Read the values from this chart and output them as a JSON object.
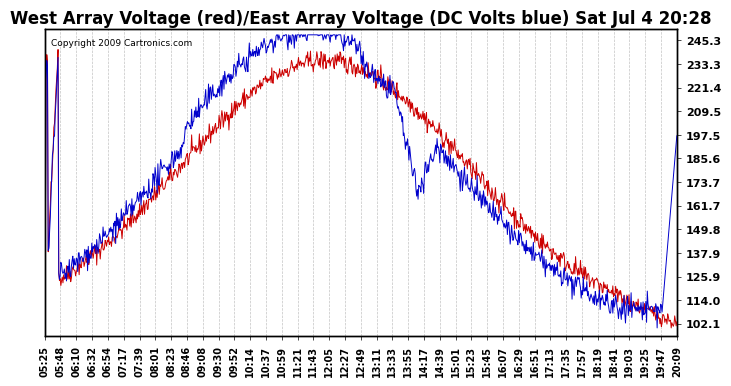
{
  "title": "West Array Voltage (red)/East Array Voltage (DC Volts blue) Sat Jul 4 20:28",
  "copyright": "Copyright 2009 Cartronics.com",
  "ylabel_right_ticks": [
    245.3,
    233.3,
    221.4,
    209.5,
    197.5,
    185.6,
    173.7,
    161.7,
    149.8,
    137.9,
    125.9,
    114.0,
    102.1
  ],
  "ylim": [
    96,
    251
  ],
  "background_color": "#ffffff",
  "grid_color": "#aaaaaa",
  "red_color": "#cc0000",
  "blue_color": "#0000cc",
  "title_fontsize": 12,
  "tick_fontsize": 8,
  "x_tick_labels": [
    "05:25",
    "05:48",
    "06:10",
    "06:32",
    "06:54",
    "07:17",
    "07:39",
    "08:01",
    "08:23",
    "08:46",
    "09:08",
    "09:30",
    "09:52",
    "10:14",
    "10:37",
    "10:59",
    "11:21",
    "11:43",
    "12:05",
    "12:27",
    "12:49",
    "13:11",
    "13:33",
    "13:55",
    "14:17",
    "14:39",
    "15:01",
    "15:23",
    "15:45",
    "16:07",
    "16:29",
    "16:51",
    "17:13",
    "17:35",
    "17:57",
    "18:19",
    "18:41",
    "19:03",
    "19:25",
    "19:47",
    "20:09"
  ]
}
